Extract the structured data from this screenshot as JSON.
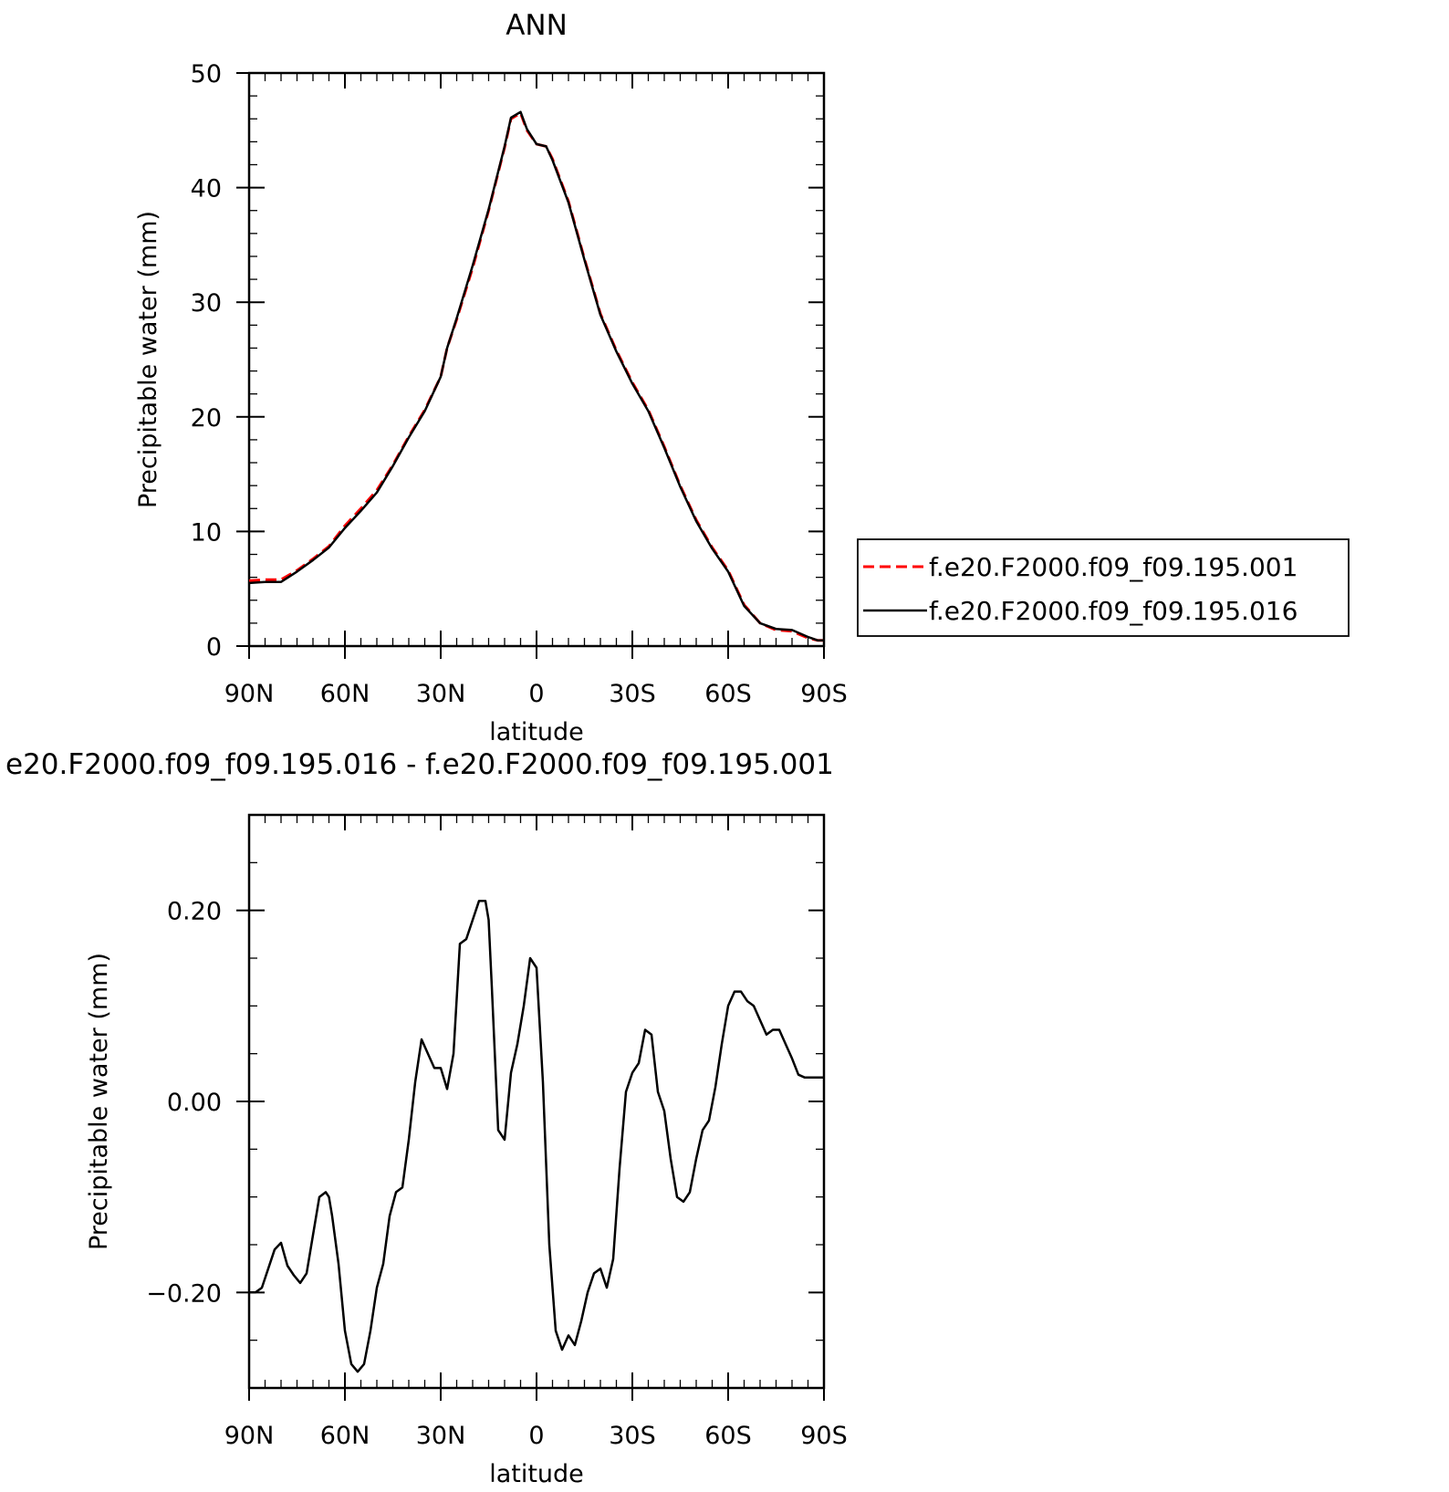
{
  "chart_data": [
    {
      "type": "line",
      "title": "ANN",
      "xlabel": "latitude",
      "ylabel": "Precipitable water (mm)",
      "xlim": [
        90,
        -90
      ],
      "ylim": [
        0,
        50
      ],
      "x_ticks": [
        {
          "value": 90,
          "label": "90N"
        },
        {
          "value": 60,
          "label": "60N"
        },
        {
          "value": 30,
          "label": "30N"
        },
        {
          "value": 0,
          "label": "0"
        },
        {
          "value": -30,
          "label": "30S"
        },
        {
          "value": -60,
          "label": "60S"
        },
        {
          "value": -90,
          "label": "90S"
        }
      ],
      "y_ticks": [
        {
          "value": 0,
          "label": "0"
        },
        {
          "value": 10,
          "label": "10"
        },
        {
          "value": 20,
          "label": "20"
        },
        {
          "value": 30,
          "label": "30"
        },
        {
          "value": 40,
          "label": "40"
        },
        {
          "value": 50,
          "label": "50"
        }
      ],
      "legend": {
        "position": "right",
        "entries": [
          {
            "label": "f.e20.F2000.f09_f09.195.001",
            "color": "#ff0000",
            "style": "dashed"
          },
          {
            "label": "f.e20.F2000.f09_f09.195.016",
            "color": "#000000",
            "style": "solid"
          }
        ]
      },
      "series": [
        {
          "name": "f.e20.F2000.f09_f09.195.001",
          "color": "#ff0000",
          "style": "dashed",
          "x": [
            90,
            85,
            80,
            75,
            70,
            65,
            60,
            55,
            50,
            45,
            40,
            35,
            30,
            28,
            25,
            20,
            15,
            10,
            8,
            5,
            3,
            0,
            -3,
            -5,
            -10,
            -15,
            -20,
            -25,
            -30,
            -35,
            -40,
            -45,
            -50,
            -55,
            -60,
            -65,
            -70,
            -75,
            -80,
            -85,
            -88,
            -90
          ],
          "y": [
            5.7,
            5.8,
            5.8,
            6.6,
            7.6,
            8.7,
            10.5,
            12.0,
            13.6,
            15.8,
            18.3,
            20.6,
            23.5,
            26.0,
            28.5,
            33.0,
            38.0,
            43.5,
            46.0,
            46.5,
            45.0,
            43.8,
            43.6,
            42.5,
            38.8,
            33.8,
            29.0,
            25.8,
            23.0,
            20.6,
            17.4,
            14.0,
            11.0,
            8.6,
            6.6,
            3.6,
            2.0,
            1.4,
            1.3,
            0.7,
            0.5,
            0.5
          ]
        },
        {
          "name": "f.e20.F2000.f09_f09.195.016",
          "color": "#000000",
          "style": "solid",
          "x": [
            90,
            85,
            80,
            75,
            70,
            65,
            60,
            55,
            50,
            45,
            40,
            35,
            30,
            28,
            25,
            20,
            15,
            10,
            8,
            5,
            3,
            0,
            -3,
            -5,
            -10,
            -15,
            -20,
            -25,
            -30,
            -35,
            -40,
            -45,
            -50,
            -55,
            -60,
            -65,
            -70,
            -75,
            -80,
            -85,
            -88,
            -90
          ],
          "y": [
            5.5,
            5.6,
            5.6,
            6.5,
            7.5,
            8.6,
            10.3,
            11.8,
            13.4,
            15.7,
            18.2,
            20.5,
            23.5,
            26.0,
            28.6,
            33.2,
            38.1,
            43.6,
            46.1,
            46.6,
            45.1,
            43.8,
            43.6,
            42.4,
            38.7,
            33.7,
            28.9,
            25.7,
            22.9,
            20.5,
            17.3,
            13.9,
            10.9,
            8.5,
            6.5,
            3.5,
            2.0,
            1.5,
            1.4,
            0.8,
            0.5,
            0.5
          ]
        }
      ]
    },
    {
      "type": "line",
      "title": "e20.F2000.f09_f09.195.016 - f.e20.F2000.f09_f09.195.001",
      "xlabel": "latitude",
      "ylabel": "Precipitable water (mm)",
      "xlim": [
        90,
        -90
      ],
      "ylim": [
        -0.3,
        0.3
      ],
      "x_ticks": [
        {
          "value": 90,
          "label": "90N"
        },
        {
          "value": 60,
          "label": "60N"
        },
        {
          "value": 30,
          "label": "30N"
        },
        {
          "value": 0,
          "label": "0"
        },
        {
          "value": -30,
          "label": "30S"
        },
        {
          "value": -60,
          "label": "60S"
        },
        {
          "value": -90,
          "label": "90S"
        }
      ],
      "y_ticks": [
        {
          "value": -0.2,
          "label": "−0.20"
        },
        {
          "value": 0.0,
          "label": "0.00"
        },
        {
          "value": 0.2,
          "label": "0.20"
        }
      ],
      "series": [
        {
          "color": "#000000",
          "style": "solid",
          "x": [
            90,
            88,
            86,
            84,
            82,
            80,
            78,
            76,
            74,
            72,
            70,
            68,
            66,
            65,
            64,
            62,
            60,
            58,
            56,
            54,
            52,
            50,
            48,
            46,
            44,
            42,
            40,
            38,
            36,
            34,
            32,
            30,
            28,
            26,
            24,
            22,
            20,
            18,
            16,
            15,
            14,
            12,
            10,
            8,
            6,
            4,
            2,
            0,
            -2,
            -4,
            -6,
            -8,
            -10,
            -12,
            -14,
            -16,
            -18,
            -20,
            -22,
            -24,
            -26,
            -28,
            -30,
            -32,
            -34,
            -36,
            -38,
            -40,
            -42,
            -44,
            -46,
            -48,
            -50,
            -52,
            -54,
            -56,
            -58,
            -60,
            -62,
            -64,
            -66,
            -68,
            -70,
            -72,
            -74,
            -76,
            -78,
            -80,
            -82,
            -84,
            -86,
            -88,
            -90
          ],
          "y": [
            -0.2,
            -0.2,
            -0.195,
            -0.175,
            -0.155,
            -0.148,
            -0.172,
            -0.182,
            -0.19,
            -0.18,
            -0.14,
            -0.1,
            -0.095,
            -0.1,
            -0.12,
            -0.17,
            -0.24,
            -0.275,
            -0.283,
            -0.275,
            -0.24,
            -0.195,
            -0.17,
            -0.12,
            -0.095,
            -0.09,
            -0.04,
            0.02,
            0.065,
            0.05,
            0.035,
            0.035,
            0.013,
            0.05,
            0.165,
            0.17,
            0.19,
            0.21,
            0.21,
            0.19,
            0.12,
            -0.03,
            -0.04,
            0.03,
            0.06,
            0.1,
            0.15,
            0.14,
            0.02,
            -0.15,
            -0.24,
            -0.26,
            -0.245,
            -0.255,
            -0.23,
            -0.2,
            -0.18,
            -0.175,
            -0.195,
            -0.165,
            -0.07,
            0.01,
            0.03,
            0.04,
            0.075,
            0.07,
            0.01,
            -0.01,
            -0.06,
            -0.1,
            -0.105,
            -0.095,
            -0.06,
            -0.03,
            -0.02,
            0.015,
            0.06,
            0.1,
            0.115,
            0.115,
            0.105,
            0.1,
            0.085,
            0.07,
            0.075,
            0.075,
            0.06,
            0.045,
            0.028,
            0.025,
            0.025,
            0.025,
            0.025
          ]
        }
      ]
    }
  ]
}
